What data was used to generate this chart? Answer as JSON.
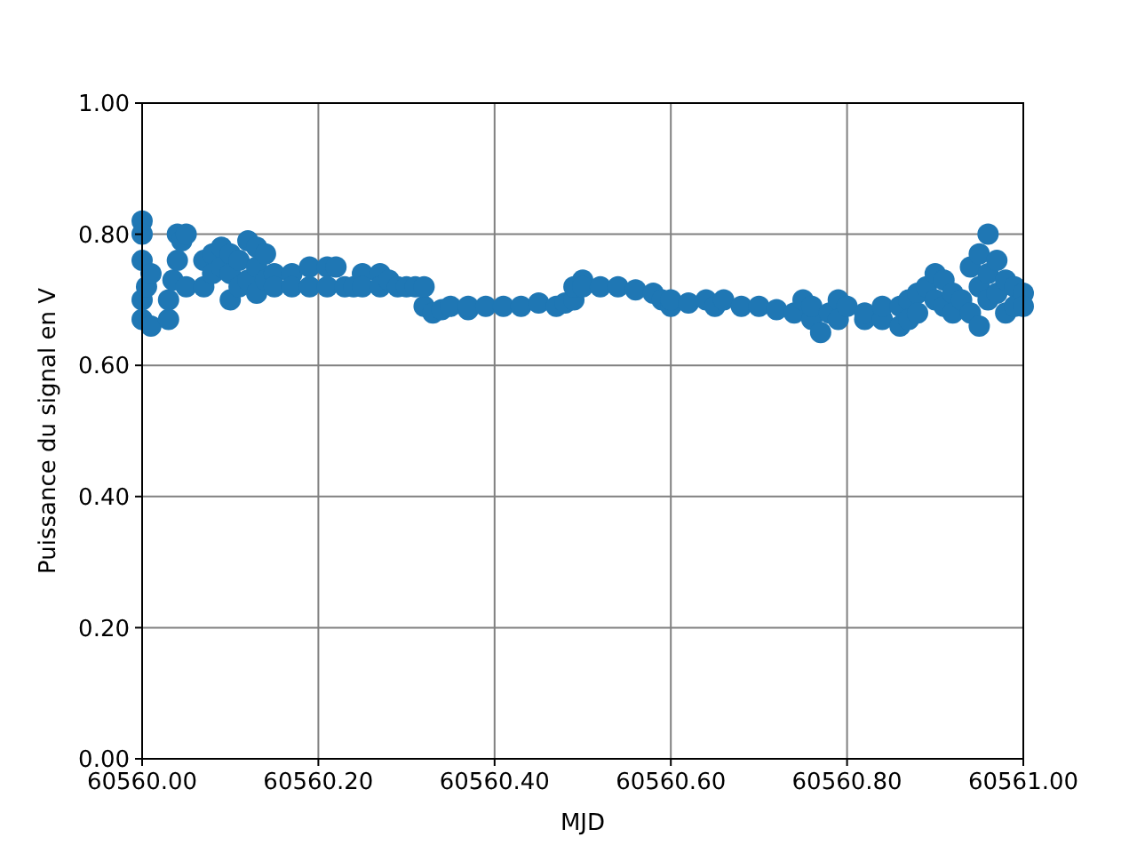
{
  "chart_data": {
    "type": "scatter",
    "xlabel": "MJD",
    "ylabel": "Puissance du signal en V",
    "xlim": [
      60560,
      60561
    ],
    "ylim": [
      0,
      1
    ],
    "xticks": [
      {
        "value": 60560,
        "label": "60560.00"
      },
      {
        "value": 60560.2,
        "label": "60560.20"
      },
      {
        "value": 60560.4,
        "label": "60560.40"
      },
      {
        "value": 60560.6,
        "label": "60560.60"
      },
      {
        "value": 60560.8,
        "label": "60560.80"
      },
      {
        "value": 60561,
        "label": "60561.00"
      }
    ],
    "yticks": [
      {
        "value": 0,
        "label": "0.00"
      },
      {
        "value": 0.2,
        "label": "0.20"
      },
      {
        "value": 0.4,
        "label": "0.40"
      },
      {
        "value": 0.6,
        "label": "0.60"
      },
      {
        "value": 0.8,
        "label": "0.80"
      },
      {
        "value": 1,
        "label": "1.00"
      }
    ],
    "grid": true,
    "marker": "circle",
    "series": [
      {
        "color": "#1f77b4",
        "x": [
          60560,
          60560,
          60560,
          60560,
          60560,
          60560.005,
          60560.01,
          60560.01,
          60560.03,
          60560.03,
          60560.035,
          60560.04,
          60560.04,
          60560.045,
          60560.05,
          60560.05,
          60560.07,
          60560.07,
          60560.08,
          60560.08,
          60560.09,
          60560.09,
          60560.1,
          60560.1,
          60560.1,
          60560.11,
          60560.11,
          60560.12,
          60560.12,
          60560.13,
          60560.13,
          60560.13,
          60560.14,
          60560.14,
          60560.15,
          60560.15,
          60560.17,
          60560.17,
          60560.19,
          60560.19,
          60560.21,
          60560.21,
          60560.22,
          60560.23,
          60560.24,
          60560.25,
          60560.25,
          60560.27,
          60560.27,
          60560.28,
          60560.29,
          60560.3,
          60560.31,
          60560.32,
          60560.32,
          60560.33,
          60560.34,
          60560.35,
          60560.37,
          60560.37,
          60560.39,
          60560.41,
          60560.43,
          60560.45,
          60560.47,
          60560.48,
          60560.49,
          60560.49,
          60560.5,
          60560.5,
          60560.52,
          60560.54,
          60560.56,
          60560.58,
          60560.59,
          60560.6,
          60560.6,
          60560.62,
          60560.64,
          60560.65,
          60560.66,
          60560.68,
          60560.7,
          60560.72,
          60560.74,
          60560.75,
          60560.76,
          60560.76,
          60560.77,
          60560.78,
          60560.79,
          60560.79,
          60560.8,
          60560.82,
          60560.82,
          60560.84,
          60560.84,
          60560.86,
          60560.86,
          60560.87,
          60560.87,
          60560.88,
          60560.88,
          60560.89,
          60560.9,
          60560.9,
          60560.91,
          60560.91,
          60560.92,
          60560.92,
          60560.93,
          60560.94,
          60560.94,
          60560.95,
          60560.95,
          60560.95,
          60560.96,
          60560.96,
          60560.96,
          60560.97,
          60560.97,
          60560.98,
          60560.98,
          60560.99,
          60560.99,
          60561,
          60561
        ],
        "values": [
          0.82,
          0.8,
          0.76,
          0.7,
          0.67,
          0.72,
          0.66,
          0.74,
          0.67,
          0.7,
          0.73,
          0.8,
          0.76,
          0.79,
          0.8,
          0.72,
          0.76,
          0.72,
          0.77,
          0.74,
          0.78,
          0.75,
          0.77,
          0.7,
          0.74,
          0.76,
          0.72,
          0.79,
          0.73,
          0.78,
          0.71,
          0.75,
          0.77,
          0.73,
          0.74,
          0.72,
          0.74,
          0.72,
          0.75,
          0.72,
          0.75,
          0.72,
          0.75,
          0.72,
          0.72,
          0.74,
          0.72,
          0.74,
          0.72,
          0.73,
          0.72,
          0.72,
          0.72,
          0.69,
          0.72,
          0.68,
          0.685,
          0.69,
          0.685,
          0.69,
          0.69,
          0.69,
          0.69,
          0.695,
          0.69,
          0.695,
          0.7,
          0.72,
          0.73,
          0.72,
          0.72,
          0.72,
          0.715,
          0.71,
          0.7,
          0.69,
          0.7,
          0.695,
          0.7,
          0.69,
          0.7,
          0.69,
          0.69,
          0.685,
          0.68,
          0.7,
          0.67,
          0.69,
          0.65,
          0.68,
          0.7,
          0.67,
          0.69,
          0.67,
          0.68,
          0.67,
          0.69,
          0.66,
          0.69,
          0.7,
          0.67,
          0.71,
          0.68,
          0.72,
          0.74,
          0.7,
          0.73,
          0.69,
          0.71,
          0.68,
          0.7,
          0.75,
          0.68,
          0.77,
          0.66,
          0.72,
          0.8,
          0.74,
          0.7,
          0.76,
          0.71,
          0.73,
          0.68,
          0.72,
          0.69,
          0.71,
          0.69
        ]
      }
    ]
  }
}
